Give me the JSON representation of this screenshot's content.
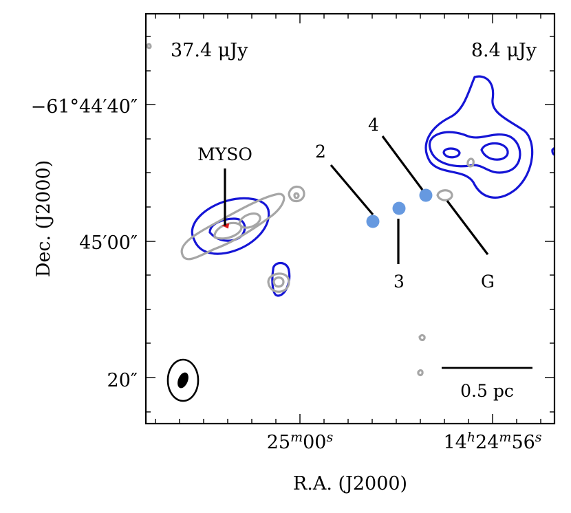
{
  "chart_data": {
    "type": "contour",
    "xlabel": "R.A. (J2000)",
    "ylabel": "Dec. (J2000)",
    "x_ticks": [
      {
        "label_main": "25",
        "label_sup1": "m",
        "label_mid": "00",
        "label_sup2": "s"
      },
      {
        "label_main": "14",
        "label_sup1": "h",
        "label_mid": "24",
        "label_sup2": "m",
        "label_end": "56",
        "label_sup3": "s"
      }
    ],
    "y_ticks": [
      {
        "label": "−61°44′40″"
      },
      {
        "label": "45′00″"
      },
      {
        "label": "20″"
      }
    ],
    "legend_left": {
      "text": "37.4 μJy",
      "color": "#1515d6"
    },
    "legend_right": {
      "text": "8.4 μJy",
      "color": "#a6a6a6"
    },
    "contour_colors": {
      "blue": "#1515d6",
      "gray": "#a6a6a6",
      "marker": "#6699e0",
      "highlight": "#e01a1a"
    },
    "labels": {
      "myso": "MYSO",
      "source_2": "2",
      "source_3": "3",
      "source_4": "4",
      "source_g": "G"
    },
    "scale_bar": {
      "label": "0.5 pc"
    },
    "beam": "ellipse-icon"
  }
}
